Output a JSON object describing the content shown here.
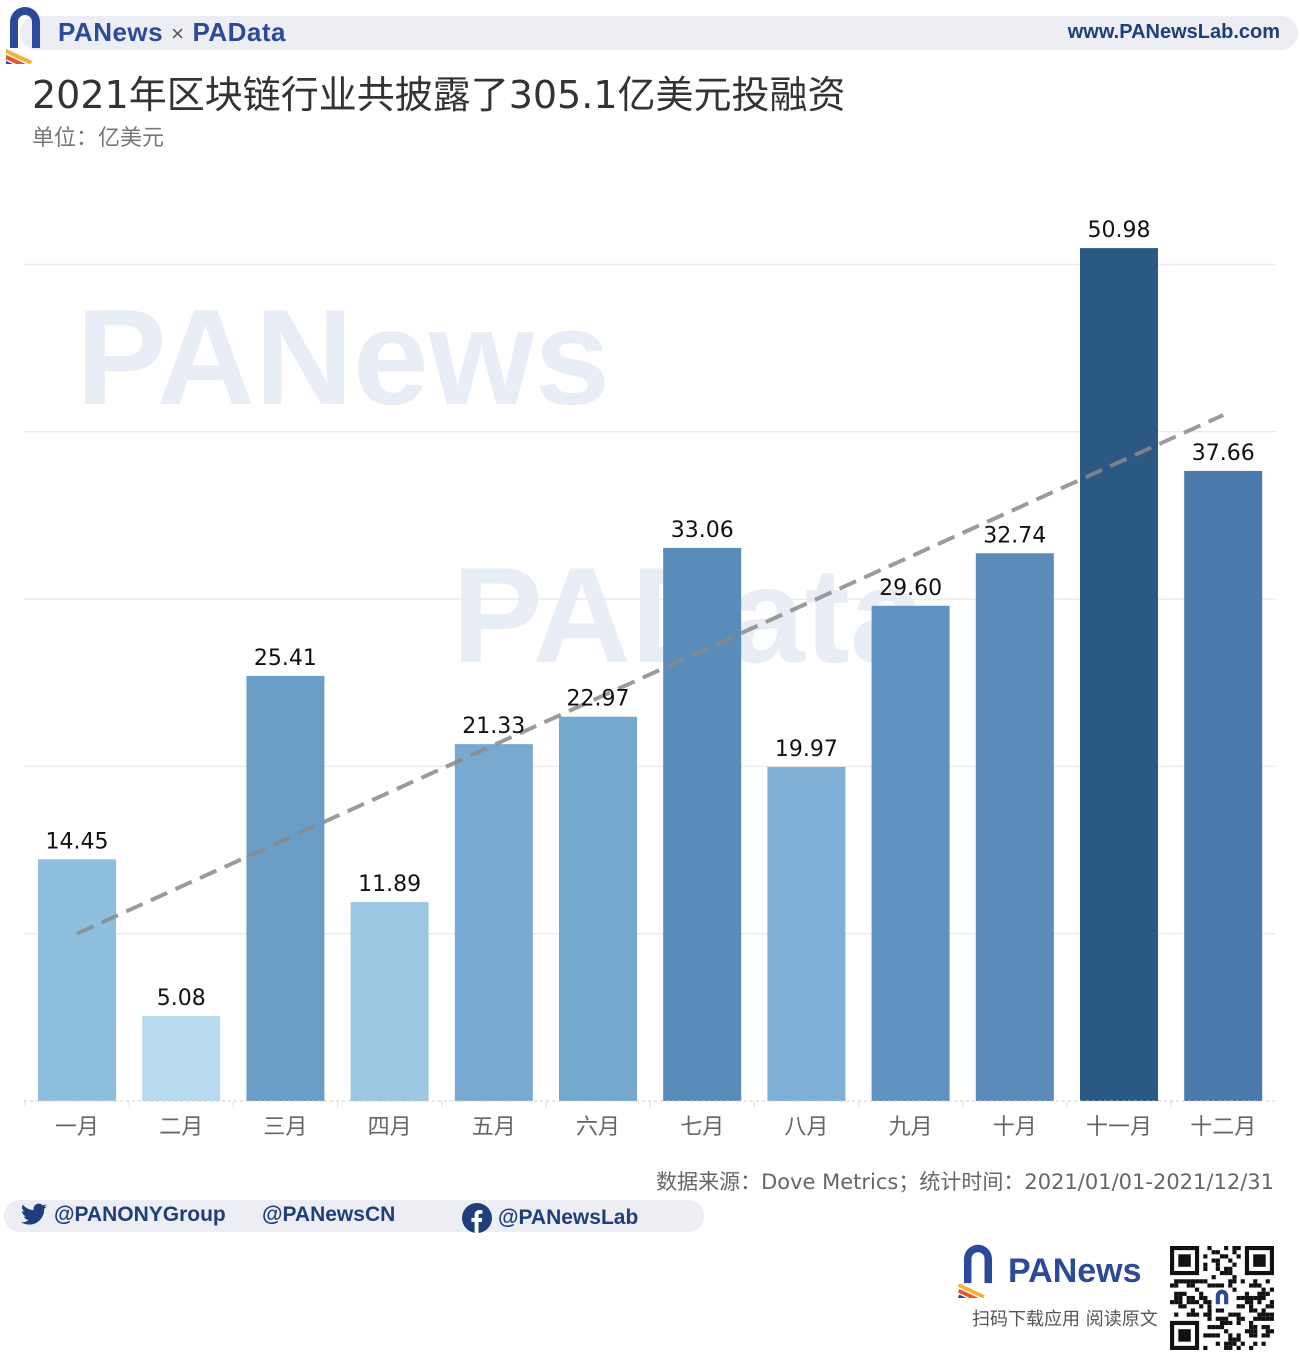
{
  "header": {
    "brand_left": "PANews",
    "brand_sep": "×",
    "brand_right": "PAData",
    "url": "www.PANewsLab.com"
  },
  "title": "2021年区块链行业共披露了305.1亿美元投融资",
  "subtitle": "单位：亿美元",
  "watermarks": [
    "PANews",
    "PAData"
  ],
  "footer": {
    "source": "数据来源：Dove Metrics；统计时间：2021/01/01-2021/12/31",
    "social": {
      "twitter1": "@PANONYGroup",
      "twitter2": "@PANewsCN",
      "facebook": "@PANewsLab"
    },
    "bottom_brand": "PANews",
    "scan_text": "扫码下载应用  阅读原文",
    "qr_label": "PANews"
  },
  "colors": {
    "brand_blue": "#2b4a9a",
    "brand_orange": "#e8552a",
    "trend_line": "#8a8a8a",
    "grid": "#ececec"
  },
  "chart_data": {
    "type": "bar",
    "title": "2021年区块链行业共披露了305.1亿美元投融资",
    "subtitle": "单位：亿美元",
    "xlabel": "",
    "ylabel": "亿美元",
    "categories": [
      "一月",
      "二月",
      "三月",
      "四月",
      "五月",
      "六月",
      "七月",
      "八月",
      "九月",
      "十月",
      "十一月",
      "十二月"
    ],
    "values": [
      14.45,
      5.08,
      25.41,
      11.89,
      21.33,
      22.97,
      33.06,
      19.97,
      29.6,
      32.74,
      50.98,
      37.66
    ],
    "labels": [
      "14.45",
      "5.08",
      "25.41",
      "11.89",
      "21.33",
      "22.97",
      "33.06",
      "19.97",
      "29.60",
      "32.74",
      "50.98",
      "37.66"
    ],
    "bar_colors": [
      "#8fbfdf",
      "#b8daef",
      "#6a9ec6",
      "#9cc7e3",
      "#78aad1",
      "#75a8cf",
      "#5a8cba",
      "#80b0d7",
      "#5f92c0",
      "#5a8bb9",
      "#2c5884",
      "#4a7aab"
    ],
    "trendline": {
      "type": "linear",
      "style": "dashed",
      "start_value": 10.0,
      "end_value": 41.0
    },
    "ylim": [
      0,
      55
    ],
    "grid": true,
    "gridlines": [
      10,
      20,
      30,
      40,
      50
    ],
    "legend": null
  }
}
